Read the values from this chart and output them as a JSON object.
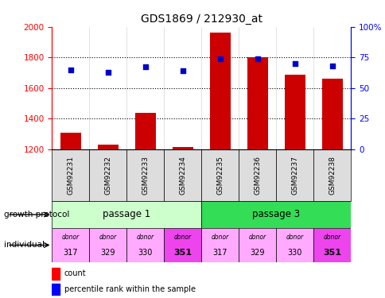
{
  "title": "GDS1869 / 212930_at",
  "samples": [
    "GSM92231",
    "GSM92232",
    "GSM92233",
    "GSM92234",
    "GSM92235",
    "GSM92236",
    "GSM92237",
    "GSM92238"
  ],
  "counts": [
    1305,
    1228,
    1435,
    1213,
    1960,
    1800,
    1685,
    1660
  ],
  "percentiles": [
    65,
    63,
    67,
    64,
    74,
    74,
    70,
    68
  ],
  "ylim_left": [
    1200,
    2000
  ],
  "ylim_right": [
    0,
    100
  ],
  "yticks_left": [
    1200,
    1400,
    1600,
    1800,
    2000
  ],
  "yticks_right": [
    0,
    25,
    50,
    75,
    100
  ],
  "bar_color": "#cc0000",
  "dot_color": "#0000cc",
  "passage_1_color": "#ccffcc",
  "passage_3_color": "#33dd55",
  "donor_light_color": "#ffaaff",
  "donor_dark_color": "#ee44ee",
  "sample_box_color": "#dddddd",
  "donors": [
    "317",
    "329",
    "330",
    "351"
  ],
  "passage_labels": [
    "passage 1",
    "passage 3"
  ],
  "growth_protocol_label": "growth protocol",
  "individual_label": "individual",
  "legend_count": "count",
  "legend_percentile": "percentile rank within the sample",
  "background_color": "#ffffff"
}
